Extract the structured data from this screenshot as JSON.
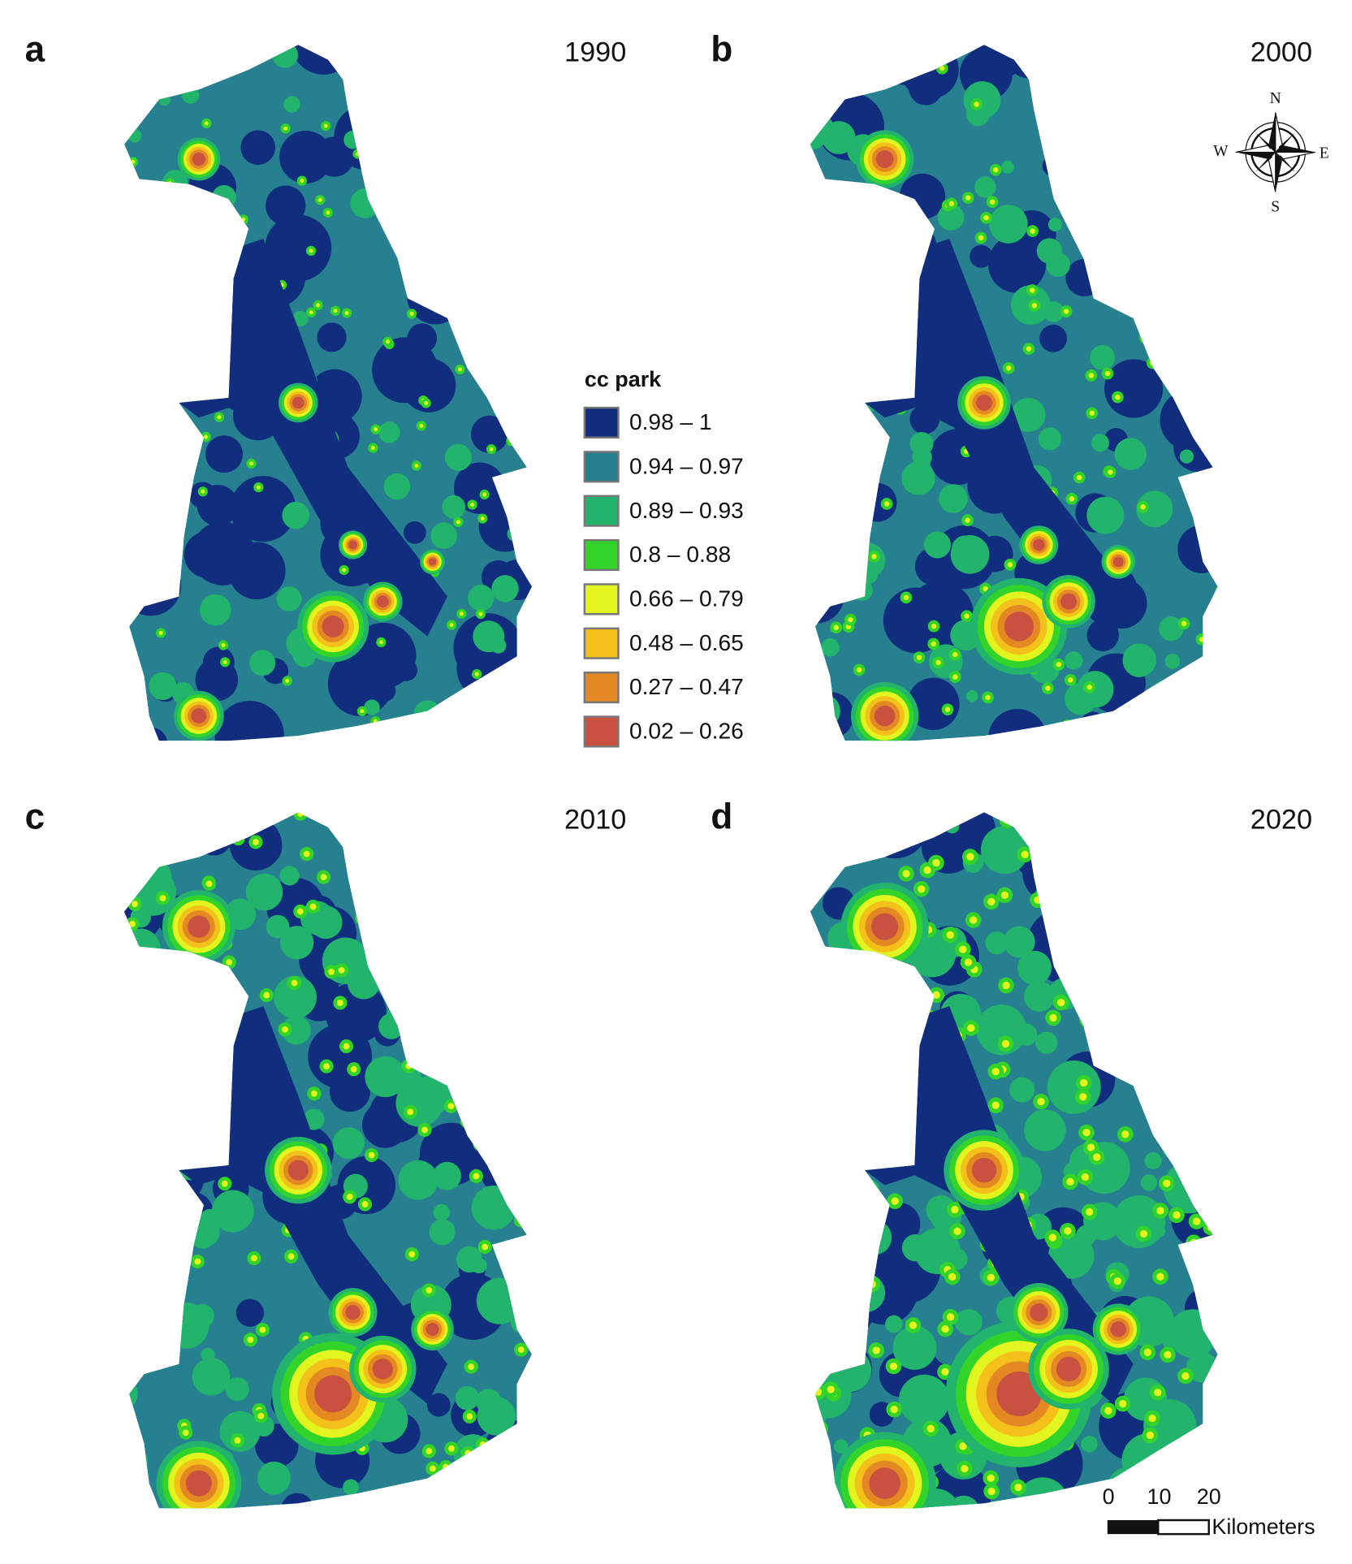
{
  "panels": [
    {
      "letter": "a",
      "year": "1990"
    },
    {
      "letter": "b",
      "year": "2000"
    },
    {
      "letter": "c",
      "year": "2010"
    },
    {
      "letter": "d",
      "year": "2020"
    }
  ],
  "legend": {
    "title": "cc park",
    "items": [
      {
        "label": "0.98 – 1",
        "color": "#112d7e"
      },
      {
        "label": "0.94 – 0.97",
        "color": "#26808f"
      },
      {
        "label": "0.89 – 0.93",
        "color": "#22b36c"
      },
      {
        "label": "0.8 – 0.88",
        "color": "#33d42a"
      },
      {
        "label": "0.66 – 0.79",
        "color": "#e3f51e"
      },
      {
        "label": "0.48 – 0.65",
        "color": "#f4c01a"
      },
      {
        "label": "0.27 – 0.47",
        "color": "#e38823"
      },
      {
        "label": "0.02 – 0.26",
        "color": "#c8513f"
      }
    ]
  },
  "compass": {
    "n": "N",
    "e": "E",
    "s": "S",
    "w": "W"
  },
  "scale_bar": {
    "labels": [
      "0",
      "10",
      "20"
    ],
    "unit": "Kilometers"
  }
}
